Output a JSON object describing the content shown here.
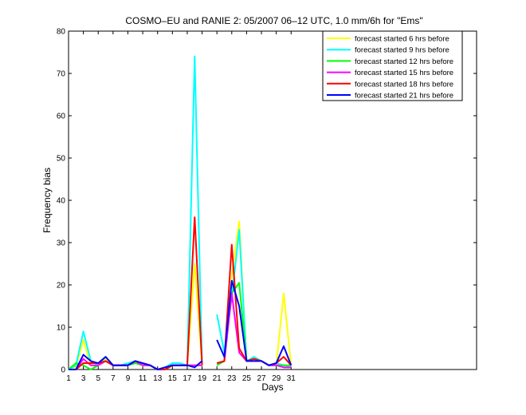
{
  "chart_data": {
    "type": "line",
    "title": "COSMO–EU and RANIE 2: 05/2007 06–12 UTC, 1.0 mm/6h for \"Ems\"",
    "xlabel": "Days",
    "ylabel": "Frequency bias",
    "xlim": [
      1,
      56
    ],
    "ylim": [
      0,
      80
    ],
    "xticks": [
      1,
      3,
      5,
      7,
      9,
      11,
      13,
      15,
      17,
      19,
      21,
      23,
      25,
      27,
      29,
      31
    ],
    "yticks": [
      0,
      10,
      20,
      30,
      40,
      50,
      60,
      70,
      80
    ],
    "grid": false,
    "legend_position": "top-right",
    "series": [
      {
        "name": "forecast started 6 hrs before",
        "color": "#ffff00",
        "points": [
          [
            1,
            0
          ],
          [
            2,
            0.5
          ],
          [
            3,
            7
          ],
          [
            4,
            1
          ],
          [
            5,
            1
          ],
          [
            6,
            2.5
          ],
          [
            7,
            1
          ],
          [
            8,
            1
          ],
          [
            9,
            1
          ],
          [
            10,
            1.5
          ],
          [
            11,
            1
          ],
          [
            12,
            1
          ],
          [
            13,
            0
          ],
          [
            14,
            0
          ],
          [
            15,
            1
          ],
          [
            16,
            1
          ],
          [
            17,
            1
          ],
          [
            18,
            25
          ],
          [
            19,
            1
          ],
          null,
          [
            21,
            1.5
          ],
          [
            22,
            2
          ],
          [
            23,
            22
          ],
          [
            24,
            35
          ],
          [
            25,
            2
          ],
          [
            26,
            2
          ],
          [
            27,
            2
          ],
          [
            28,
            1
          ],
          [
            29,
            1
          ],
          [
            30,
            18
          ],
          [
            31,
            1
          ]
        ]
      },
      {
        "name": "forecast started 9 hrs before",
        "color": "#00ffff",
        "points": [
          [
            1,
            0
          ],
          [
            2,
            1
          ],
          [
            3,
            9
          ],
          [
            4,
            2
          ],
          [
            5,
            1
          ],
          [
            6,
            3
          ],
          [
            7,
            1
          ],
          [
            8,
            1
          ],
          [
            9,
            1.5
          ],
          [
            10,
            2
          ],
          [
            11,
            1.5
          ],
          [
            12,
            1
          ],
          [
            13,
            0
          ],
          [
            14,
            0.5
          ],
          [
            15,
            1.5
          ],
          [
            16,
            1.5
          ],
          [
            17,
            1
          ],
          [
            18,
            74
          ],
          [
            19,
            1
          ],
          null,
          [
            21,
            13
          ],
          [
            22,
            4
          ],
          [
            23,
            17
          ],
          [
            24,
            33
          ],
          [
            25,
            2
          ],
          [
            26,
            3
          ],
          [
            27,
            2
          ],
          [
            28,
            1
          ],
          [
            29,
            1.5
          ],
          [
            30,
            1
          ],
          [
            31,
            0.5
          ]
        ]
      },
      {
        "name": "forecast started 12 hrs before",
        "color": "#00ff00",
        "points": [
          [
            1,
            0
          ],
          [
            2,
            1.5
          ],
          [
            3,
            1
          ],
          [
            4,
            0
          ],
          [
            5,
            1
          ],
          [
            6,
            2
          ],
          [
            7,
            1
          ],
          [
            8,
            1
          ],
          [
            9,
            1
          ],
          [
            10,
            1.5
          ],
          [
            11,
            1
          ],
          [
            12,
            1
          ],
          [
            13,
            0
          ],
          [
            14,
            0
          ],
          [
            15,
            1
          ],
          [
            16,
            1
          ],
          [
            17,
            1
          ],
          [
            18,
            1
          ],
          [
            19,
            1
          ],
          null,
          [
            21,
            1
          ],
          [
            22,
            2
          ],
          [
            23,
            18
          ],
          [
            24,
            20.5
          ],
          [
            25,
            2
          ],
          [
            26,
            2.5
          ],
          [
            27,
            2
          ],
          [
            28,
            1
          ],
          [
            29,
            1
          ],
          [
            30,
            1
          ],
          [
            31,
            1
          ]
        ]
      },
      {
        "name": "forecast started 15 hrs before",
        "color": "#ff00ff",
        "points": [
          [
            1,
            0
          ],
          [
            2,
            0
          ],
          [
            3,
            2.5
          ],
          [
            4,
            1
          ],
          [
            5,
            1
          ],
          [
            6,
            2
          ],
          [
            7,
            1
          ],
          [
            8,
            1
          ],
          [
            9,
            1
          ],
          [
            10,
            2
          ],
          [
            11,
            1
          ],
          [
            12,
            1
          ],
          [
            13,
            0
          ],
          [
            14,
            0
          ],
          [
            15,
            1
          ],
          [
            16,
            1
          ],
          [
            17,
            1
          ],
          [
            18,
            1
          ],
          [
            19,
            1
          ],
          null,
          [
            21,
            1.5
          ],
          [
            22,
            2
          ],
          [
            23,
            18
          ],
          [
            24,
            4
          ],
          [
            25,
            2
          ],
          [
            26,
            2
          ],
          [
            27,
            2
          ],
          [
            28,
            1
          ],
          [
            29,
            1
          ],
          [
            30,
            0.5
          ],
          [
            31,
            0.5
          ]
        ]
      },
      {
        "name": "forecast started 18 hrs before",
        "color": "#ff0000",
        "points": [
          [
            1,
            0
          ],
          [
            2,
            0
          ],
          [
            3,
            1.5
          ],
          [
            4,
            1.5
          ],
          [
            5,
            1.5
          ],
          [
            6,
            2
          ],
          [
            7,
            1
          ],
          [
            8,
            1
          ],
          [
            9,
            1
          ],
          [
            10,
            2
          ],
          [
            11,
            1.5
          ],
          [
            12,
            1
          ],
          [
            13,
            0
          ],
          [
            14,
            0
          ],
          [
            15,
            1
          ],
          [
            16,
            1
          ],
          [
            17,
            1
          ],
          [
            18,
            36
          ],
          [
            19,
            1
          ],
          null,
          [
            21,
            1.5
          ],
          [
            22,
            2
          ],
          [
            23,
            29.5
          ],
          [
            24,
            5
          ],
          [
            25,
            2
          ],
          [
            26,
            2.5
          ],
          [
            27,
            2
          ],
          [
            28,
            1
          ],
          [
            29,
            1.5
          ],
          [
            30,
            3
          ],
          [
            31,
            1
          ]
        ]
      },
      {
        "name": "forecast started 21 hrs before",
        "color": "#0000ff",
        "points": [
          [
            1,
            0
          ],
          [
            2,
            0
          ],
          [
            3,
            3.5
          ],
          [
            4,
            2
          ],
          [
            5,
            1.5
          ],
          [
            6,
            3
          ],
          [
            7,
            1
          ],
          [
            8,
            1
          ],
          [
            9,
            1
          ],
          [
            10,
            2
          ],
          [
            11,
            1.5
          ],
          [
            12,
            1
          ],
          [
            13,
            0
          ],
          [
            14,
            0.5
          ],
          [
            15,
            1
          ],
          [
            16,
            1
          ],
          [
            17,
            1
          ],
          [
            18,
            0.5
          ],
          [
            19,
            2
          ],
          null,
          [
            21,
            7
          ],
          [
            22,
            3
          ],
          [
            23,
            21
          ],
          [
            24,
            15
          ],
          [
            25,
            2
          ],
          [
            26,
            2
          ],
          [
            27,
            2
          ],
          [
            28,
            1
          ],
          [
            29,
            1.5
          ],
          [
            30,
            5.5
          ],
          [
            31,
            1
          ]
        ]
      }
    ]
  }
}
